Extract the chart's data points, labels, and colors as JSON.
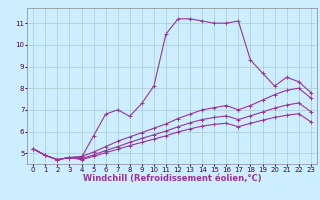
{
  "background_color": "#cceeff",
  "grid_color": "#aacccc",
  "line_color": "#993399",
  "marker": "+",
  "marker_size": 3,
  "linewidth": 0.8,
  "xlabel": "Windchill (Refroidissement éolien,°C)",
  "xlabel_fontsize": 6,
  "tick_fontsize": 5,
  "xlim": [
    -0.5,
    23.5
  ],
  "ylim": [
    4.5,
    11.7
  ],
  "yticks": [
    5,
    6,
    7,
    8,
    9,
    10,
    11
  ],
  "xticks": [
    0,
    1,
    2,
    3,
    4,
    5,
    6,
    7,
    8,
    9,
    10,
    11,
    12,
    13,
    14,
    15,
    16,
    17,
    18,
    19,
    20,
    21,
    22,
    23
  ],
  "series": [
    [
      5.2,
      4.9,
      4.7,
      4.8,
      4.8,
      5.8,
      6.8,
      7.0,
      6.7,
      7.3,
      8.1,
      10.5,
      11.2,
      11.2,
      11.1,
      11.0,
      11.0,
      11.1,
      9.3,
      8.7,
      8.1,
      8.5,
      8.3,
      7.8
    ],
    [
      5.2,
      4.9,
      4.7,
      4.8,
      4.85,
      5.05,
      5.3,
      5.55,
      5.75,
      5.95,
      6.15,
      6.35,
      6.6,
      6.8,
      7.0,
      7.1,
      7.2,
      7.0,
      7.2,
      7.45,
      7.7,
      7.9,
      8.0,
      7.55
    ],
    [
      5.2,
      4.9,
      4.7,
      4.8,
      4.75,
      4.92,
      5.12,
      5.3,
      5.5,
      5.68,
      5.85,
      6.02,
      6.22,
      6.4,
      6.55,
      6.65,
      6.72,
      6.55,
      6.72,
      6.9,
      7.08,
      7.22,
      7.32,
      6.92
    ],
    [
      5.2,
      4.9,
      4.7,
      4.8,
      4.7,
      4.85,
      5.02,
      5.18,
      5.35,
      5.5,
      5.65,
      5.8,
      5.98,
      6.12,
      6.25,
      6.33,
      6.38,
      6.22,
      6.38,
      6.52,
      6.65,
      6.75,
      6.82,
      6.45
    ]
  ]
}
